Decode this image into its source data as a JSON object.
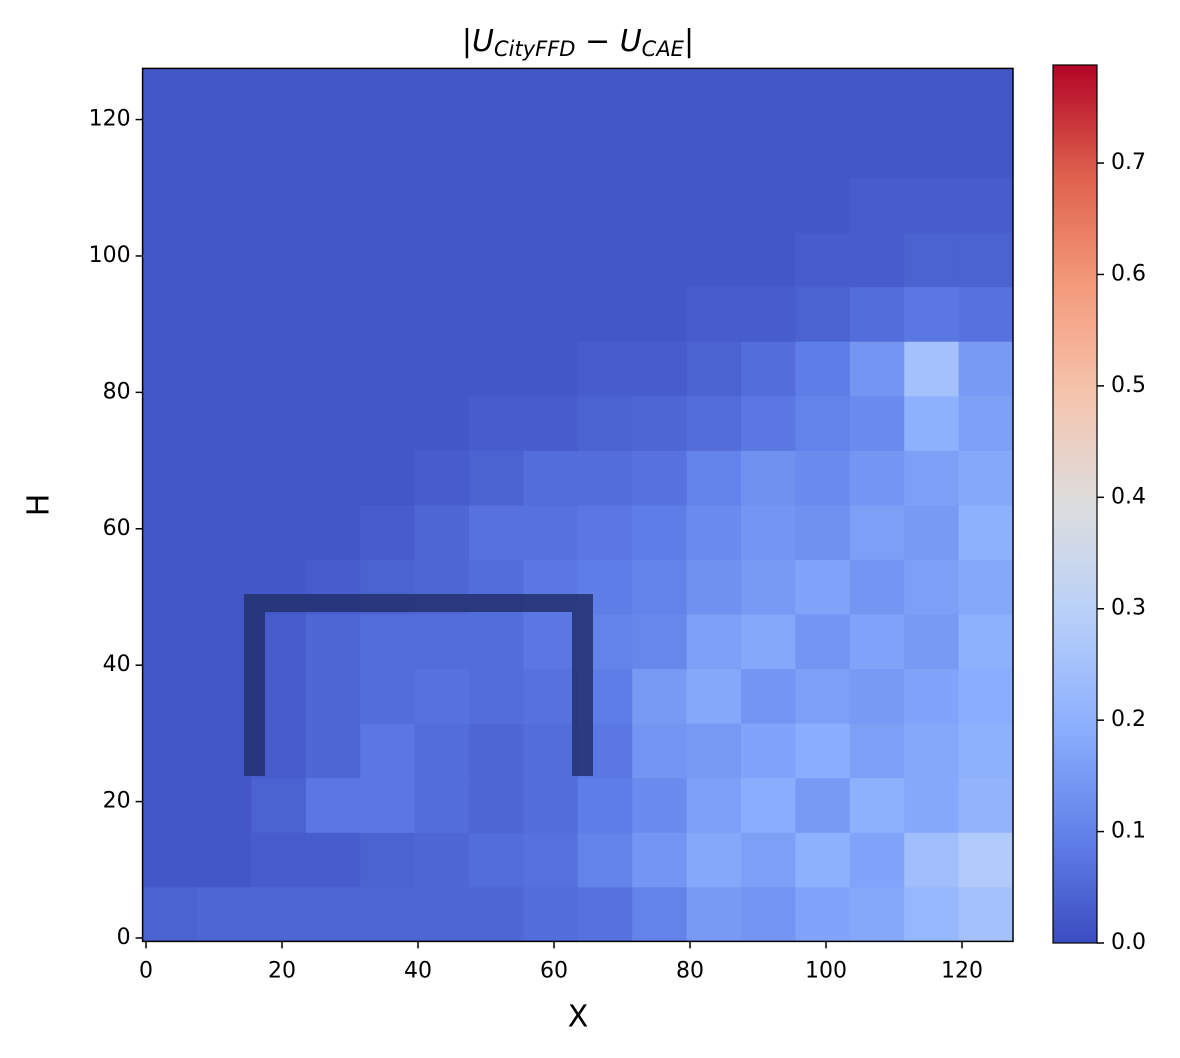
{
  "chart_data": {
    "type": "heatmap",
    "title": [
      "|U",
      "CityFFD",
      " − U",
      "CAE",
      "|"
    ],
    "xlabel": "X",
    "ylabel": "H",
    "xlim": [
      -0.5,
      127.5
    ],
    "ylim": [
      -0.5,
      127.5
    ],
    "xticks": [
      0,
      20,
      40,
      60,
      80,
      100,
      120
    ],
    "yticks": [
      0,
      20,
      40,
      60,
      80,
      100,
      120
    ],
    "colormap": "coolwarm",
    "clim": [
      0,
      0.788
    ],
    "cticks": [
      {
        "value": 0,
        "label": "0.0"
      },
      0.1,
      0.2,
      0.3,
      0.4,
      0.5,
      0.6,
      0.7
    ],
    "z": [
      [
        0.04,
        0.05,
        0.05,
        0.05,
        0.05,
        0.05,
        0.05,
        0.06,
        0.07,
        0.1,
        0.15,
        0.14,
        0.17,
        0.18,
        0.22,
        0.25
      ],
      [
        0.02,
        0.02,
        0.03,
        0.03,
        0.04,
        0.05,
        0.06,
        0.07,
        0.1,
        0.14,
        0.18,
        0.16,
        0.2,
        0.17,
        0.24,
        0.28
      ],
      [
        0.02,
        0.02,
        0.04,
        0.08,
        0.08,
        0.06,
        0.05,
        0.06,
        0.09,
        0.12,
        0.16,
        0.19,
        0.15,
        0.2,
        0.18,
        0.21
      ],
      [
        0.02,
        0.02,
        0.03,
        0.05,
        0.08,
        0.06,
        0.05,
        0.06,
        0.08,
        0.14,
        0.15,
        0.17,
        0.19,
        0.16,
        0.18,
        0.2
      ],
      [
        0.02,
        0.02,
        0.03,
        0.05,
        0.06,
        0.07,
        0.06,
        0.07,
        0.09,
        0.15,
        0.18,
        0.14,
        0.16,
        0.15,
        0.17,
        0.19
      ],
      [
        0.02,
        0.02,
        0.03,
        0.05,
        0.06,
        0.06,
        0.06,
        0.08,
        0.1,
        0.11,
        0.16,
        0.18,
        0.14,
        0.17,
        0.15,
        0.2
      ],
      [
        0.02,
        0.02,
        0.02,
        0.03,
        0.04,
        0.05,
        0.06,
        0.08,
        0.09,
        0.1,
        0.13,
        0.15,
        0.17,
        0.14,
        0.16,
        0.18
      ],
      [
        0.02,
        0.02,
        0.02,
        0.02,
        0.03,
        0.05,
        0.07,
        0.07,
        0.08,
        0.09,
        0.12,
        0.14,
        0.13,
        0.16,
        0.15,
        0.2
      ],
      [
        0.02,
        0.02,
        0.02,
        0.02,
        0.02,
        0.03,
        0.04,
        0.06,
        0.06,
        0.07,
        0.1,
        0.13,
        0.12,
        0.14,
        0.16,
        0.18
      ],
      [
        0.02,
        0.02,
        0.02,
        0.02,
        0.02,
        0.02,
        0.03,
        0.03,
        0.04,
        0.05,
        0.06,
        0.08,
        0.1,
        0.12,
        0.2,
        0.16
      ],
      [
        0.02,
        0.02,
        0.02,
        0.02,
        0.02,
        0.02,
        0.02,
        0.02,
        0.03,
        0.03,
        0.04,
        0.06,
        0.09,
        0.14,
        0.25,
        0.15
      ],
      [
        0.02,
        0.02,
        0.02,
        0.02,
        0.02,
        0.02,
        0.02,
        0.02,
        0.02,
        0.02,
        0.03,
        0.03,
        0.04,
        0.06,
        0.08,
        0.07
      ],
      [
        0.02,
        0.02,
        0.02,
        0.02,
        0.02,
        0.02,
        0.02,
        0.02,
        0.02,
        0.02,
        0.02,
        0.02,
        0.03,
        0.03,
        0.04,
        0.04
      ],
      [
        0.02,
        0.02,
        0.02,
        0.02,
        0.02,
        0.02,
        0.02,
        0.02,
        0.02,
        0.02,
        0.02,
        0.02,
        0.02,
        0.03,
        0.03,
        0.03
      ],
      [
        0.02,
        0.02,
        0.02,
        0.02,
        0.02,
        0.02,
        0.02,
        0.02,
        0.02,
        0.02,
        0.02,
        0.02,
        0.02,
        0.02,
        0.02,
        0.02
      ],
      [
        0.02,
        0.02,
        0.02,
        0.02,
        0.02,
        0.02,
        0.02,
        0.02,
        0.02,
        0.02,
        0.02,
        0.02,
        0.02,
        0.02,
        0.02,
        0.02
      ]
    ]
  }
}
